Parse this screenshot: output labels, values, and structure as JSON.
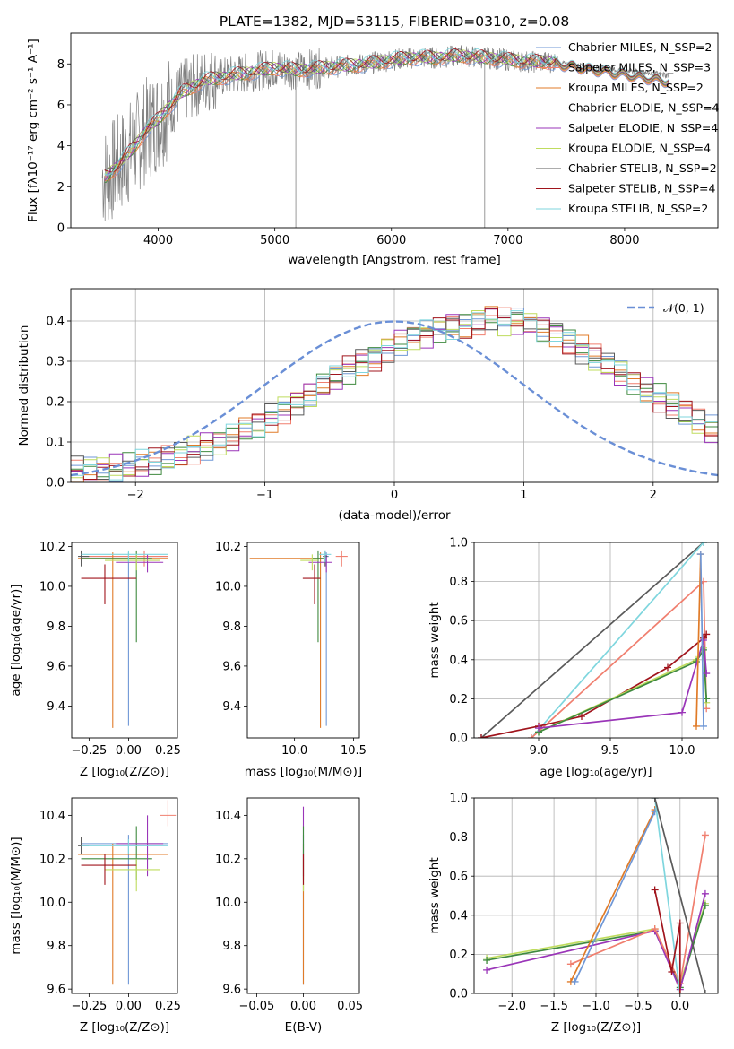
{
  "figure": {
    "title": "PLATE=1382, MJD=53115, FIBERID=0310, z=0.08"
  },
  "colors": {
    "Chabrier MILES": "#6f97d6",
    "Salpeter MILES": "#f07f6f",
    "Kroupa MILES": "#e07b28",
    "Chabrier ELODIE": "#3f8a3f",
    "Salpeter ELODIE": "#9a35b8",
    "Kroupa ELODIE": "#bfdc5e",
    "Chabrier STELIB": "#5a5a5a",
    "Salpeter STELIB": "#a0141c",
    "Kroupa STELIB": "#7fd6de",
    "gaussian": "#6a8fd6",
    "data": "#808080"
  },
  "chart_data": [
    {
      "id": "spectrum",
      "type": "line",
      "xlabel": "wavelength [Angstrom, rest frame]",
      "ylabel": "Flux [fλ10⁻¹⁷ erg cm⁻² s⁻¹ A⁻¹]",
      "xlim": [
        3250,
        8800
      ],
      "ylim": [
        0,
        9.5
      ],
      "xticks": [
        "4000",
        "5000",
        "6000",
        "7000",
        "8000"
      ],
      "yticks": [
        "0",
        "2",
        "4",
        "6",
        "8"
      ],
      "legend_position": "right",
      "legend": [
        "Chabrier MILES, N_SSP=2",
        "Salpeter MILES, N_SSP=3",
        "Kroupa MILES, N_SSP=2",
        "Chabrier ELODIE, N_SSP=4",
        "Salpeter ELODIE, N_SSP=4",
        "Kroupa ELODIE, N_SSP=4",
        "Chabrier STELIB, N_SSP=2",
        "Salpeter STELIB, N_SSP=4",
        "Kroupa STELIB, N_SSP=2"
      ],
      "model_continuum": {
        "x": [
          3550,
          3650,
          3800,
          3900,
          4000,
          4200,
          4400,
          4600,
          4800,
          5000,
          5200,
          5400,
          5600,
          5800,
          6000,
          6200,
          6400,
          6600,
          6800,
          7000,
          7200,
          7400
        ],
        "y": [
          2.5,
          3.0,
          4.0,
          4.8,
          5.3,
          6.6,
          7.2,
          7.4,
          7.6,
          7.8,
          7.7,
          7.8,
          7.9,
          8.0,
          8.2,
          8.3,
          8.3,
          8.4,
          8.3,
          8.2,
          8.1,
          8.1
        ]
      }
    },
    {
      "id": "residuals",
      "type": "histogram",
      "xlabel": "(data-model)/error",
      "ylabel": "Normed distribution",
      "xlim": [
        -2.5,
        2.5
      ],
      "ylim": [
        0,
        0.48
      ],
      "xticks": [
        "−2",
        "−1",
        "0",
        "1",
        "2"
      ],
      "yticks": [
        "0.0",
        "0.1",
        "0.2",
        "0.3",
        "0.4"
      ],
      "legend": [
        "𝒩(0, 1)"
      ],
      "legend_position": "top-right",
      "grid": true,
      "bin_width": 0.1,
      "bin_start": -2.5,
      "base_values": [
        0.03,
        0.03,
        0.032,
        0.035,
        0.04,
        0.045,
        0.05,
        0.06,
        0.07,
        0.08,
        0.09,
        0.1,
        0.11,
        0.13,
        0.14,
        0.16,
        0.18,
        0.2,
        0.22,
        0.24,
        0.26,
        0.28,
        0.3,
        0.31,
        0.33,
        0.35,
        0.36,
        0.37,
        0.38,
        0.39,
        0.39,
        0.4,
        0.41,
        0.4,
        0.4,
        0.39,
        0.38,
        0.37,
        0.35,
        0.33,
        0.31,
        0.29,
        0.27,
        0.25,
        0.23,
        0.21,
        0.19,
        0.17,
        0.15,
        0.13,
        0.12,
        0.11,
        0.1,
        0.09,
        0.08,
        0.07,
        0.06,
        0.05,
        0.045,
        0.04,
        0.035,
        0.032,
        0.03,
        0.028,
        0.026,
        0.025,
        0.024,
        0.023,
        0.022,
        0.021,
        0.02,
        0.02,
        0.02
      ]
    },
    {
      "id": "age-vs-z",
      "type": "errorbar",
      "xlabel": "Z [log₁₀(Z/Z⊙)]",
      "ylabel": "age  [log₁₀(age/yr)]",
      "xlim": [
        -0.36,
        0.31
      ],
      "ylim": [
        9.24,
        10.22
      ],
      "xticks": [
        "−0.25",
        "0.00",
        "0.25"
      ],
      "yticks": [
        "9.4",
        "9.6",
        "9.8",
        "10.0",
        "10.2"
      ],
      "points": [
        {
          "model": "Chabrier MILES",
          "x": 0.0,
          "y": 10.15,
          "xerr": [
            0.3,
            0.25
          ],
          "yerr": [
            0.85,
            0.02
          ]
        },
        {
          "model": "Salpeter MILES",
          "x": 0.1,
          "y": 10.15,
          "xerr": [
            0.4,
            0.15
          ],
          "yerr": [
            0.05,
            0.03
          ]
        },
        {
          "model": "Kroupa MILES",
          "x": -0.1,
          "y": 10.14,
          "xerr": [
            0.22,
            0.35
          ],
          "yerr": [
            0.85,
            0.03
          ]
        },
        {
          "model": "Chabrier ELODIE",
          "x": 0.05,
          "y": 10.14,
          "xerr": [
            0.35,
            0.1
          ],
          "yerr": [
            0.42,
            0.04
          ]
        },
        {
          "model": "Salpeter ELODIE",
          "x": 0.12,
          "y": 10.12,
          "xerr": [
            0.2,
            0.1
          ],
          "yerr": [
            0.05,
            0.04
          ]
        },
        {
          "model": "Kroupa ELODIE",
          "x": 0.05,
          "y": 10.13,
          "xerr": [
            0.2,
            0.15
          ],
          "yerr": [
            0.05,
            0.03
          ]
        },
        {
          "model": "Chabrier STELIB",
          "x": -0.3,
          "y": 10.15,
          "xerr": [
            0.02,
            0.05
          ],
          "yerr": [
            0.05,
            0.03
          ]
        },
        {
          "model": "Salpeter STELIB",
          "x": -0.15,
          "y": 10.04,
          "xerr": [
            0.15,
            0.2
          ],
          "yerr": [
            0.13,
            0.07
          ]
        },
        {
          "model": "Kroupa STELIB",
          "x": 0.0,
          "y": 10.16,
          "xerr": [
            0.3,
            0.25
          ],
          "yerr": [
            0.04,
            0.02
          ]
        }
      ]
    },
    {
      "id": "age-vs-mass",
      "type": "errorbar",
      "xlabel": "mass [log₁₀(M/M⊙)]",
      "ylabel": "",
      "xlim": [
        9.6,
        10.55
      ],
      "ylim": [
        9.24,
        10.22
      ],
      "xticks": [
        "10.0",
        "10.5"
      ],
      "yticks": [
        "9.4",
        "9.6",
        "9.8",
        "10.0",
        "10.2"
      ],
      "points": [
        {
          "model": "Chabrier MILES",
          "x": 10.27,
          "y": 10.15,
          "xerr": [
            0.02,
            0.02
          ],
          "yerr": [
            0.85,
            0.02
          ]
        },
        {
          "model": "Salpeter MILES",
          "x": 10.4,
          "y": 10.15,
          "xerr": [
            0.05,
            0.05
          ],
          "yerr": [
            0.05,
            0.03
          ]
        },
        {
          "model": "Kroupa MILES",
          "x": 10.22,
          "y": 10.14,
          "xerr": [
            0.6,
            0.02
          ],
          "yerr": [
            0.85,
            0.03
          ]
        },
        {
          "model": "Chabrier ELODIE",
          "x": 10.2,
          "y": 10.14,
          "xerr": [
            0.05,
            0.05
          ],
          "yerr": [
            0.42,
            0.04
          ]
        },
        {
          "model": "Salpeter ELODIE",
          "x": 10.27,
          "y": 10.12,
          "xerr": [
            0.15,
            0.05
          ],
          "yerr": [
            0.05,
            0.04
          ]
        },
        {
          "model": "Kroupa ELODIE",
          "x": 10.15,
          "y": 10.13,
          "xerr": [
            0.1,
            0.05
          ],
          "yerr": [
            0.05,
            0.03
          ]
        },
        {
          "model": "Chabrier STELIB",
          "x": 10.26,
          "y": 10.15,
          "xerr": [
            0.02,
            0.02
          ],
          "yerr": [
            0.05,
            0.03
          ]
        },
        {
          "model": "Salpeter STELIB",
          "x": 10.17,
          "y": 10.04,
          "xerr": [
            0.1,
            0.05
          ],
          "yerr": [
            0.13,
            0.07
          ]
        },
        {
          "model": "Kroupa STELIB",
          "x": 10.26,
          "y": 10.16,
          "xerr": [
            0.05,
            0.05
          ],
          "yerr": [
            0.04,
            0.02
          ]
        }
      ]
    },
    {
      "id": "weight-vs-age",
      "type": "line",
      "xlabel": "age  [log₁₀(age/yr)]",
      "ylabel": "mass weight",
      "xlim": [
        8.55,
        10.25
      ],
      "ylim": [
        0,
        1
      ],
      "xticks": [
        "9.0",
        "9.5",
        "10.0"
      ],
      "yticks": [
        "0.0",
        "0.2",
        "0.4",
        "0.6",
        "0.8",
        "1.0"
      ],
      "grid": true,
      "series": [
        {
          "model": "Chabrier STELIB",
          "x": [
            8.6,
            10.15
          ],
          "y": [
            0.0,
            1.0
          ]
        },
        {
          "model": "Kroupa STELIB",
          "x": [
            8.95,
            10.15
          ],
          "y": [
            0.0,
            1.0
          ]
        },
        {
          "model": "Salpeter MILES",
          "x": [
            8.95,
            10.15,
            10.17
          ],
          "y": [
            0.0,
            0.8,
            0.15
          ]
        },
        {
          "model": "Salpeter STELIB",
          "x": [
            8.6,
            9.0,
            9.3,
            9.9,
            10.15,
            10.17
          ],
          "y": [
            0.0,
            0.06,
            0.11,
            0.36,
            0.51,
            0.53
          ]
        },
        {
          "model": "Kroupa ELODIE",
          "x": [
            9.0,
            10.1,
            10.15,
            10.17
          ],
          "y": [
            0.03,
            0.4,
            0.46,
            0.18
          ]
        },
        {
          "model": "Chabrier ELODIE",
          "x": [
            9.0,
            10.1,
            10.15,
            10.17
          ],
          "y": [
            0.03,
            0.39,
            0.45,
            0.2
          ]
        },
        {
          "model": "Salpeter ELODIE",
          "x": [
            9.0,
            10.0,
            10.15,
            10.17
          ],
          "y": [
            0.05,
            0.13,
            0.5,
            0.33
          ]
        },
        {
          "model": "Kroupa MILES",
          "x": [
            10.1,
            10.13
          ],
          "y": [
            0.06,
            0.94
          ]
        },
        {
          "model": "Chabrier MILES",
          "x": [
            10.13,
            10.15
          ],
          "y": [
            0.94,
            0.06
          ]
        }
      ]
    },
    {
      "id": "mass-vs-z",
      "type": "errorbar",
      "xlabel": "Z [log₁₀(Z/Z⊙)]",
      "ylabel": "mass [log₁₀(M/M⊙)]",
      "xlim": [
        -0.36,
        0.31
      ],
      "ylim": [
        9.58,
        10.48
      ],
      "xticks": [
        "−0.25",
        "0.00",
        "0.25"
      ],
      "yticks": [
        "9.6",
        "9.8",
        "10.0",
        "10.2",
        "10.4"
      ],
      "points": [
        {
          "model": "Chabrier MILES",
          "x": 0.0,
          "y": 10.27,
          "xerr": [
            0.3,
            0.25
          ],
          "yerr": [
            0.65,
            0.04
          ]
        },
        {
          "model": "Salpeter MILES",
          "x": 0.25,
          "y": 10.4,
          "xerr": [
            0.05,
            0.05
          ],
          "yerr": [
            0.05,
            0.07
          ]
        },
        {
          "model": "Kroupa MILES",
          "x": -0.1,
          "y": 10.22,
          "xerr": [
            0.22,
            0.35
          ],
          "yerr": [
            0.6,
            0.05
          ]
        },
        {
          "model": "Chabrier ELODIE",
          "x": 0.05,
          "y": 10.2,
          "xerr": [
            0.35,
            0.1
          ],
          "yerr": [
            0.1,
            0.15
          ]
        },
        {
          "model": "Salpeter ELODIE",
          "x": 0.12,
          "y": 10.27,
          "xerr": [
            0.2,
            0.1
          ],
          "yerr": [
            0.15,
            0.13
          ]
        },
        {
          "model": "Kroupa ELODIE",
          "x": 0.05,
          "y": 10.15,
          "xerr": [
            0.2,
            0.15
          ],
          "yerr": [
            0.1,
            0.05
          ]
        },
        {
          "model": "Chabrier STELIB",
          "x": -0.3,
          "y": 10.26,
          "xerr": [
            0.02,
            0.05
          ],
          "yerr": [
            0.04,
            0.04
          ]
        },
        {
          "model": "Salpeter STELIB",
          "x": -0.15,
          "y": 10.17,
          "xerr": [
            0.15,
            0.2
          ],
          "yerr": [
            0.09,
            0.05
          ]
        },
        {
          "model": "Kroupa STELIB",
          "x": 0.0,
          "y": 10.26,
          "xerr": [
            0.3,
            0.25
          ],
          "yerr": [
            0.04,
            0.03
          ]
        }
      ]
    },
    {
      "id": "mass-vs-ebv",
      "type": "errorbar",
      "xlabel": "E(B-V)",
      "ylabel": "",
      "xlim": [
        -0.06,
        0.06
      ],
      "ylim": [
        9.58,
        10.48
      ],
      "xticks": [
        "−0.05",
        "0.00",
        "0.05"
      ],
      "yticks": [
        "9.6",
        "9.8",
        "10.0",
        "10.2",
        "10.4"
      ],
      "points": [
        {
          "model": "Chabrier MILES",
          "x": 0.0,
          "y": 10.27,
          "xerr": [
            0,
            0
          ],
          "yerr": [
            0.65,
            0.04
          ]
        },
        {
          "model": "Salpeter ELODIE",
          "x": 0.0,
          "y": 10.27,
          "xerr": [
            0,
            0
          ],
          "yerr": [
            0.15,
            0.17
          ]
        },
        {
          "model": "Kroupa MILES",
          "x": 0.0,
          "y": 10.22,
          "xerr": [
            0,
            0
          ],
          "yerr": [
            0.6,
            0.05
          ]
        },
        {
          "model": "Chabrier ELODIE",
          "x": 0.0,
          "y": 10.2,
          "xerr": [
            0,
            0
          ],
          "yerr": [
            0.1,
            0.15
          ]
        },
        {
          "model": "Kroupa ELODIE",
          "x": 0.0,
          "y": 10.15,
          "xerr": [
            0,
            0
          ],
          "yerr": [
            0.1,
            0.05
          ]
        },
        {
          "model": "Salpeter STELIB",
          "x": 0.0,
          "y": 10.17,
          "xerr": [
            0,
            0
          ],
          "yerr": [
            0.09,
            0.05
          ]
        }
      ]
    },
    {
      "id": "weight-vs-z",
      "type": "line",
      "xlabel": "Z [log₁₀(Z/Z⊙)]",
      "ylabel": "mass weight",
      "xlim": [
        -2.45,
        0.45
      ],
      "ylim": [
        0,
        1
      ],
      "xticks": [
        "−2.0",
        "−1.5",
        "−1.0",
        "−0.5",
        "0.0"
      ],
      "yticks": [
        "0.0",
        "0.2",
        "0.4",
        "0.6",
        "0.8",
        "1.0"
      ],
      "grid": true,
      "series": [
        {
          "model": "Kroupa ELODIE",
          "x": [
            -2.3,
            -0.3,
            0.0,
            0.3
          ],
          "y": [
            0.18,
            0.33,
            0.05,
            0.46
          ]
        },
        {
          "model": "Chabrier ELODIE",
          "x": [
            -2.3,
            -0.3,
            0.0,
            0.3
          ],
          "y": [
            0.17,
            0.32,
            0.03,
            0.45
          ]
        },
        {
          "model": "Salpeter ELODIE",
          "x": [
            -2.3,
            -0.3,
            0.0,
            0.3
          ],
          "y": [
            0.12,
            0.32,
            0.02,
            0.51
          ]
        },
        {
          "model": "Salpeter MILES",
          "x": [
            -1.3,
            -0.3,
            0.0,
            0.3
          ],
          "y": [
            0.15,
            0.33,
            0.05,
            0.81
          ]
        },
        {
          "model": "Kroupa MILES",
          "x": [
            -1.3,
            -0.3
          ],
          "y": [
            0.06,
            0.94
          ]
        },
        {
          "model": "Chabrier MILES",
          "x": [
            -1.25,
            -0.3
          ],
          "y": [
            0.06,
            0.93
          ]
        },
        {
          "model": "Kroupa STELIB",
          "x": [
            -0.3,
            0.0
          ],
          "y": [
            1.0,
            0.0
          ]
        },
        {
          "model": "Chabrier STELIB",
          "x": [
            -0.3,
            0.3
          ],
          "y": [
            1.0,
            0.0
          ]
        },
        {
          "model": "Salpeter STELIB",
          "x": [
            -0.3,
            -0.1,
            0.0,
            0.0
          ],
          "y": [
            0.53,
            0.11,
            0.36,
            0.0
          ]
        }
      ]
    }
  ]
}
